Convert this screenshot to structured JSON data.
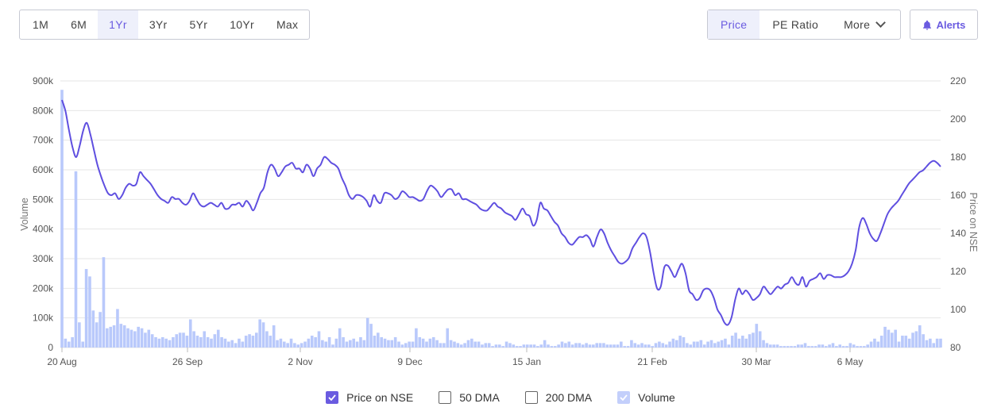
{
  "range_tabs": [
    "1M",
    "6M",
    "1Yr",
    "3Yr",
    "5Yr",
    "10Yr",
    "Max"
  ],
  "range_active": "1Yr",
  "metric_tabs": {
    "price": "Price",
    "pe": "PE Ratio",
    "more": "More"
  },
  "alerts_label": "Alerts",
  "colors": {
    "price_line": "#5f4fe0",
    "volume_bar": "#b9c9fb",
    "accent": "#6a5be0",
    "grid": "#e6e6e6"
  },
  "chart_data": {
    "type": "line",
    "x_ticks": [
      "20 Aug",
      "26 Sep",
      "2 Nov",
      "9 Dec",
      "15 Jan",
      "21 Feb",
      "30 Mar",
      "6 May"
    ],
    "y_left": {
      "label": "Volume",
      "ticks": [
        "0",
        "100k",
        "200k",
        "300k",
        "400k",
        "500k",
        "600k",
        "700k",
        "800k",
        "900k"
      ],
      "range": [
        0,
        900000
      ]
    },
    "y_right": {
      "label": "Price on NSE",
      "ticks": [
        "80",
        "100",
        "120",
        "140",
        "160",
        "180",
        "200",
        "220"
      ],
      "range": [
        80,
        220
      ]
    },
    "grid": true,
    "legend_placement": "bottom",
    "series": [
      {
        "name": "Price on NSE",
        "axis": "right",
        "values": [
          210,
          204,
          194,
          185,
          180,
          186,
          194,
          198,
          192,
          184,
          176,
          170,
          165,
          161,
          160,
          161,
          158,
          160,
          164,
          166,
          165,
          166,
          172,
          170,
          168,
          166,
          163,
          160,
          158,
          157,
          156,
          159,
          158,
          158,
          156,
          155,
          157,
          161,
          158,
          155,
          154,
          155,
          156,
          155,
          154,
          156,
          153,
          153,
          155,
          155,
          156,
          154,
          157,
          155,
          152,
          156,
          161,
          164,
          172,
          176,
          174,
          170,
          172,
          175,
          176,
          177,
          174,
          174,
          172,
          176,
          174,
          170,
          174,
          176,
          180,
          179,
          177,
          176,
          174,
          169,
          165,
          160,
          158,
          160,
          160,
          159,
          157,
          154,
          160,
          157,
          156,
          161,
          161,
          160,
          158,
          159,
          162,
          161,
          159,
          159,
          158,
          157,
          158,
          162,
          165,
          164,
          162,
          159,
          161,
          163,
          163,
          160,
          161,
          158,
          158,
          157,
          156,
          155,
          153,
          152,
          152,
          154,
          156,
          154,
          153,
          151,
          150,
          149,
          147,
          150,
          153,
          150,
          149,
          144,
          147,
          156,
          153,
          152,
          149,
          146,
          144,
          140,
          138,
          135,
          134,
          136,
          138,
          138,
          139,
          137,
          133,
          138,
          142,
          140,
          135,
          131,
          128,
          125,
          124,
          125,
          127,
          132,
          135,
          138,
          140,
          138,
          130,
          119,
          111,
          112,
          122,
          123,
          120,
          117,
          121,
          124,
          119,
          110,
          108,
          105,
          106,
          110,
          111,
          110,
          106,
          100,
          97,
          93,
          92,
          96,
          105,
          111,
          108,
          110,
          108,
          105,
          106,
          108,
          112,
          110,
          108,
          110,
          112,
          111,
          113,
          114,
          117,
          114,
          113,
          117,
          112,
          115,
          116,
          117,
          119,
          116,
          118,
          118,
          117,
          117,
          117,
          118,
          120,
          124,
          131,
          143,
          148,
          145,
          140,
          137,
          136,
          140,
          145,
          150,
          153,
          155,
          157,
          160,
          163,
          166,
          168,
          170,
          172,
          173,
          175,
          177,
          178,
          177,
          175
        ]
      },
      {
        "name": "Volume",
        "axis": "left",
        "type": "bar",
        "values": [
          870000,
          30000,
          20000,
          35000,
          595000,
          85000,
          20000,
          265000,
          240000,
          125000,
          85000,
          120000,
          305000,
          65000,
          70000,
          75000,
          130000,
          80000,
          75000,
          65000,
          60000,
          55000,
          70000,
          65000,
          50000,
          60000,
          45000,
          35000,
          30000,
          35000,
          30000,
          25000,
          35000,
          45000,
          50000,
          50000,
          40000,
          95000,
          55000,
          40000,
          35000,
          55000,
          35000,
          30000,
          45000,
          60000,
          35000,
          30000,
          20000,
          25000,
          15000,
          30000,
          20000,
          40000,
          45000,
          40000,
          50000,
          95000,
          85000,
          55000,
          40000,
          75000,
          25000,
          30000,
          20000,
          15000,
          30000,
          15000,
          10000,
          15000,
          20000,
          30000,
          40000,
          35000,
          55000,
          25000,
          20000,
          35000,
          10000,
          30000,
          65000,
          35000,
          20000,
          25000,
          30000,
          20000,
          35000,
          25000,
          100000,
          80000,
          40000,
          50000,
          35000,
          30000,
          25000,
          25000,
          35000,
          20000,
          10000,
          15000,
          20000,
          20000,
          65000,
          35000,
          30000,
          20000,
          30000,
          35000,
          25000,
          15000,
          15000,
          65000,
          25000,
          20000,
          15000,
          10000,
          15000,
          25000,
          30000,
          20000,
          20000,
          10000,
          15000,
          15000,
          5000,
          10000,
          10000,
          5000,
          20000,
          15000,
          10000,
          5000,
          5000,
          10000,
          10000,
          10000,
          10000,
          5000,
          10000,
          25000,
          10000,
          5000,
          5000,
          10000,
          20000,
          15000,
          20000,
          10000,
          15000,
          15000,
          10000,
          15000,
          10000,
          10000,
          15000,
          15000,
          15000,
          10000,
          10000,
          10000,
          10000,
          20000,
          5000,
          5000,
          25000,
          15000,
          10000,
          15000,
          10000,
          10000,
          5000,
          15000,
          20000,
          15000,
          10000,
          20000,
          30000,
          25000,
          40000,
          35000,
          15000,
          10000,
          20000,
          20000,
          25000,
          10000,
          20000,
          25000,
          15000,
          20000,
          25000,
          30000,
          10000,
          40000,
          50000,
          30000,
          40000,
          30000,
          45000,
          50000,
          80000,
          55000,
          25000,
          15000,
          10000,
          10000,
          10000,
          5000,
          5000,
          5000,
          5000,
          5000,
          10000,
          10000,
          15000,
          5000,
          5000,
          5000,
          10000,
          10000,
          5000,
          10000,
          15000,
          5000,
          10000,
          5000,
          5000,
          15000,
          10000,
          5000,
          5000,
          5000,
          10000,
          20000,
          30000,
          20000,
          40000,
          70000,
          60000,
          50000,
          60000,
          20000,
          40000,
          40000,
          30000,
          50000,
          55000,
          75000,
          45000,
          25000,
          30000,
          15000,
          30000,
          30000
        ]
      }
    ]
  },
  "legend": [
    {
      "label": "Price on NSE",
      "checked": true
    },
    {
      "label": "50 DMA",
      "checked": false
    },
    {
      "label": "200 DMA",
      "checked": false
    },
    {
      "label": "Volume",
      "checked": true
    }
  ]
}
